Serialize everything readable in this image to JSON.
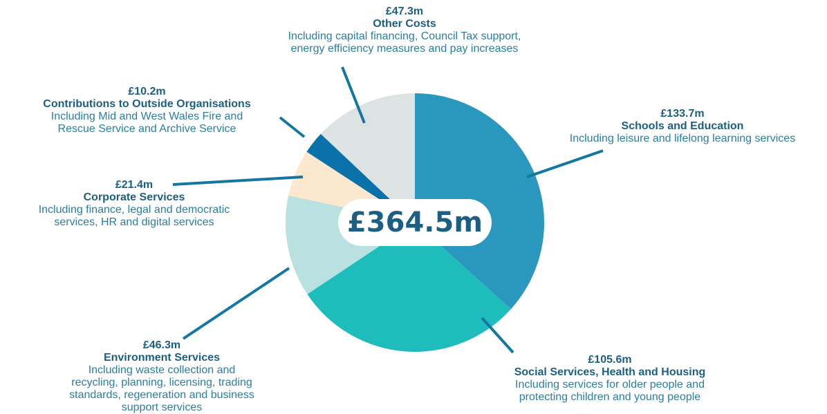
{
  "chart_data": {
    "type": "pie",
    "total": "£364.5m",
    "slices": [
      {
        "value": 133.7,
        "amount": "£133.7m",
        "name": "Schools and Education",
        "desc_lines": [
          "Including leisure and lifelong learning services"
        ],
        "color": "#2a97bf"
      },
      {
        "value": 105.6,
        "amount": "£105.6m",
        "name": "Social Services, Health and Housing",
        "desc_lines": [
          "Including services for older people and",
          "protecting children and young people"
        ],
        "color": "#1fbcbc"
      },
      {
        "value": 46.3,
        "amount": "£46.3m",
        "name": "Environment Services",
        "desc_lines": [
          "Including waste collection and",
          "recycling, planning, licensing, trading",
          "standards, regeneration and business",
          "support services"
        ],
        "color": "#b8e1e0"
      },
      {
        "value": 21.4,
        "amount": "£21.4m",
        "name": "Corporate Services",
        "desc_lines": [
          "Including finance, legal and democratic",
          "services, HR and digital services"
        ],
        "color": "#fbe8cf"
      },
      {
        "value": 10.2,
        "amount": "£10.2m",
        "name": "Contributions to Outside Organisations",
        "desc_lines": [
          "Including Mid and West Wales Fire and",
          "Rescue Service and Archive Service"
        ],
        "color": "#0a72a8"
      },
      {
        "value": 47.3,
        "amount": "£47.3m",
        "name": "Other Costs",
        "desc_lines": [
          "Including capital financing, Council Tax support,",
          "energy efficiency measures and pay increases"
        ],
        "color": "#dde3e3"
      }
    ],
    "leader_color": "#1477a3"
  }
}
